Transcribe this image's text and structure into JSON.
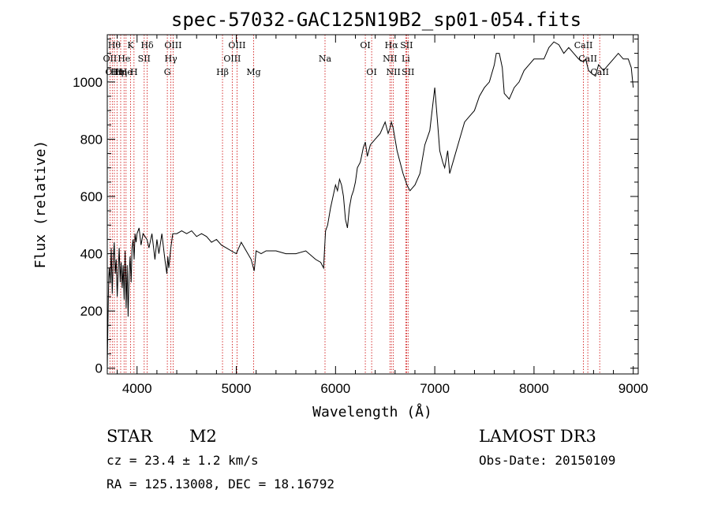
{
  "chart_data": {
    "type": "line",
    "title": "spec-57032-GAC125N19B2_sp01-054.fits",
    "xlabel": "Wavelength (Å)",
    "ylabel": "Flux (relative)",
    "xlim": [
      3700,
      9050
    ],
    "ylim": [
      -20,
      1165
    ],
    "xticks": [
      4000,
      5000,
      6000,
      7000,
      8000,
      9000
    ],
    "yticks": [
      0,
      200,
      400,
      600,
      800,
      1000
    ],
    "grid": false,
    "series": [
      {
        "x": [
          3700,
          3705,
          3710,
          3715,
          3720,
          3730,
          3740,
          3750,
          3760,
          3770,
          3780,
          3790,
          3800,
          3810,
          3820,
          3830,
          3840,
          3850,
          3860,
          3870,
          3880,
          3890,
          3900,
          3910,
          3920,
          3930,
          3940,
          3950,
          3960,
          3970,
          3980,
          3990,
          4000,
          4020,
          4040,
          4060,
          4080,
          4100,
          4120,
          4150,
          4180,
          4200,
          4220,
          4250,
          4280,
          4300,
          4310,
          4320,
          4340,
          4360,
          4400,
          4450,
          4500,
          4550,
          4600,
          4650,
          4700,
          4750,
          4800,
          4850,
          4900,
          4950,
          5000,
          5050,
          5100,
          5150,
          5180,
          5200,
          5250,
          5300,
          5400,
          5500,
          5600,
          5700,
          5800,
          5850,
          5880,
          5890,
          5900,
          5920,
          5950,
          6000,
          6020,
          6040,
          6060,
          6080,
          6100,
          6120,
          6140,
          6160,
          6180,
          6200,
          6220,
          6250,
          6280,
          6300,
          6320,
          6350,
          6400,
          6450,
          6500,
          6530,
          6550,
          6563,
          6580,
          6600,
          6620,
          6650,
          6680,
          6700,
          6720,
          6750,
          6800,
          6850,
          6900,
          6950,
          7000,
          7030,
          7050,
          7080,
          7100,
          7130,
          7150,
          7200,
          7250,
          7300,
          7350,
          7400,
          7450,
          7500,
          7550,
          7600,
          7620,
          7650,
          7680,
          7700,
          7750,
          7800,
          7850,
          7900,
          7950,
          8000,
          8050,
          8100,
          8150,
          8200,
          8250,
          8300,
          8350,
          8400,
          8450,
          8500,
          8520,
          8550,
          8580,
          8620,
          8650,
          8700,
          8750,
          8800,
          8850,
          8900,
          8950,
          8980,
          9000
        ],
        "y": [
          0,
          120,
          240,
          320,
          350,
          300,
          420,
          260,
          380,
          440,
          330,
          380,
          250,
          340,
          420,
          300,
          370,
          280,
          360,
          240,
          410,
          210,
          360,
          180,
          330,
          390,
          300,
          420,
          450,
          380,
          470,
          440,
          470,
          490,
          430,
          470,
          460,
          450,
          420,
          470,
          380,
          450,
          400,
          470,
          380,
          330,
          390,
          350,
          420,
          470,
          470,
          480,
          470,
          480,
          460,
          470,
          460,
          440,
          450,
          430,
          420,
          410,
          400,
          440,
          410,
          380,
          340,
          410,
          400,
          410,
          410,
          400,
          400,
          410,
          380,
          370,
          350,
          420,
          480,
          500,
          560,
          640,
          620,
          660,
          640,
          600,
          520,
          490,
          560,
          600,
          620,
          650,
          700,
          720,
          770,
          790,
          740,
          780,
          800,
          820,
          860,
          820,
          840,
          860,
          840,
          800,
          760,
          720,
          680,
          660,
          640,
          620,
          640,
          680,
          780,
          830,
          980,
          850,
          760,
          720,
          700,
          760,
          680,
          740,
          800,
          860,
          880,
          900,
          950,
          980,
          1000,
          1060,
          1100,
          1100,
          1050,
          960,
          940,
          980,
          1000,
          1040,
          1060,
          1080,
          1080,
          1080,
          1120,
          1140,
          1130,
          1100,
          1120,
          1100,
          1080,
          1070,
          1080,
          1040,
          1030,
          1020,
          1060,
          1040,
          1060,
          1080,
          1100,
          1080,
          1080,
          1050,
          980
        ]
      }
    ],
    "lines": [
      {
        "x": 3727,
        "label": "OII",
        "row": 2
      },
      {
        "x": 3750,
        "label": "OII",
        "row": 3
      },
      {
        "x": 3771,
        "label": "Hθ",
        "row": 1
      },
      {
        "x": 3798,
        "label": "Hη",
        "row": 3
      },
      {
        "x": 3835,
        "label": "Hη",
        "row": 3
      },
      {
        "x": 3869,
        "label": "He",
        "row": 2
      },
      {
        "x": 3889,
        "label": "He",
        "row": 3
      },
      {
        "x": 3934,
        "label": "K",
        "row": 1
      },
      {
        "x": 3969,
        "label": "H",
        "row": 3
      },
      {
        "x": 4072,
        "label": "SII",
        "row": 2
      },
      {
        "x": 4102,
        "label": "Hδ",
        "row": 1
      },
      {
        "x": 4305,
        "label": "G",
        "row": 3
      },
      {
        "x": 4341,
        "label": "Hγ",
        "row": 2
      },
      {
        "x": 4363,
        "label": "OIII",
        "row": 1
      },
      {
        "x": 4861,
        "label": "Hβ",
        "row": 3
      },
      {
        "x": 4959,
        "label": "OIII",
        "row": 2
      },
      {
        "x": 5007,
        "label": "OIII",
        "row": 1
      },
      {
        "x": 5175,
        "label": "Mg",
        "row": 3
      },
      {
        "x": 5894,
        "label": "Na",
        "row": 2
      },
      {
        "x": 6300,
        "label": "OI",
        "row": 1
      },
      {
        "x": 6364,
        "label": "OI",
        "row": 3
      },
      {
        "x": 6548,
        "label": "NII",
        "row": 2
      },
      {
        "x": 6563,
        "label": "Hα",
        "row": 1
      },
      {
        "x": 6583,
        "label": "NII",
        "row": 3
      },
      {
        "x": 6708,
        "label": "Li",
        "row": 2
      },
      {
        "x": 6716,
        "label": "SII",
        "row": 1
      },
      {
        "x": 6731,
        "label": "SII",
        "row": 3
      },
      {
        "x": 8498,
        "label": "CaII",
        "row": 1
      },
      {
        "x": 8542,
        "label": "CaII",
        "row": 2
      },
      {
        "x": 8662,
        "label": "CaII",
        "row": 3
      }
    ],
    "line_color": "#cc0000"
  },
  "info": {
    "class": "STAR",
    "subclass": "M2",
    "survey": "LAMOST DR3",
    "cz": "cz = 23.4 ± 1.2 km/s",
    "obs_date": "Obs-Date: 20150109",
    "coords": "RA = 125.13008, DEC =  18.16792"
  }
}
